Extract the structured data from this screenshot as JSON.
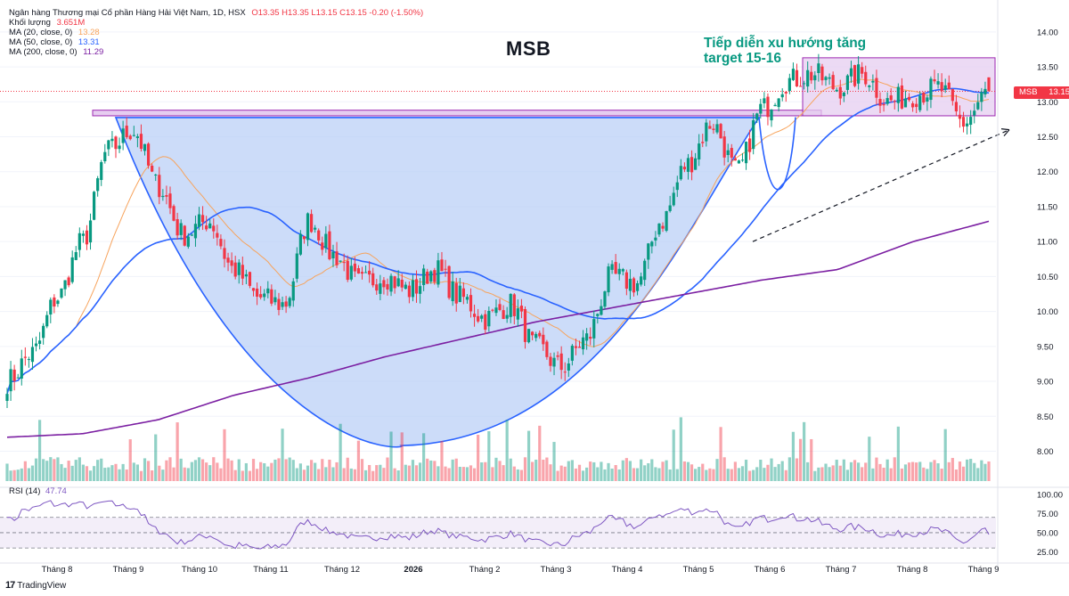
{
  "header": {
    "instrument": "Ngân hàng Thương mại Cổ phần Hàng Hải Việt Nam, 1D, HSX",
    "ohlc": "O13.35  H13.35  L13.15  C13.15  -0.20 (-1.50%)",
    "volume_label": "Khối lượng",
    "volume_value": "3.651M",
    "ma20_label": "MA (20, close, 0)",
    "ma20_value": "13.28",
    "ma50_label": "MA (50, close, 0)",
    "ma50_value": "13.31",
    "ma200_label": "MA (200, close, 0)",
    "ma200_value": "11.29"
  },
  "title": "MSB",
  "annotation_line1": "Tiếp diễn xu hướng tăng",
  "annotation_line2": "target 15-16",
  "price_badge": {
    "symbol": "MSB",
    "value": "13.15"
  },
  "rsi_legend": {
    "label": "RSI (14)",
    "value": "47.74"
  },
  "footer": {
    "logo_mark": "17",
    "logo_text": "TradingView"
  },
  "colors": {
    "up": "#089981",
    "down": "#f23645",
    "ma20": "#f7a35c",
    "ma50": "#2962ff",
    "ma200": "#7b1fa2",
    "cup_fill": "#bbd0f7",
    "box_fill": "#e6cdf0",
    "rsi": "#7e57c2",
    "rsi_band": "#f3eef9"
  },
  "chart_data": {
    "type": "candlestick",
    "title": "MSB",
    "price_axis": {
      "min": 7.7,
      "max": 14.1,
      "ticks": [
        "14.00",
        "13.50",
        "13.00",
        "12.50",
        "12.00",
        "11.50",
        "11.00",
        "10.50",
        "10.00",
        "9.50",
        "9.00",
        "8.50",
        "8.00"
      ]
    },
    "rsi_axis": {
      "min": 15,
      "max": 100,
      "ticks": [
        "100.00",
        "75.00",
        "50.00",
        "25.00"
      ]
    },
    "x_labels": [
      "Tháng 8",
      "Tháng 9",
      "Tháng 10",
      "Tháng 11",
      "Tháng 12",
      "2026",
      "Tháng 2",
      "Tháng 3",
      "Tháng 4",
      "Tháng 5",
      "Tháng 6",
      "Tháng 7",
      "Tháng 8",
      "Tháng 9"
    ],
    "close_anchors": [
      9.0,
      9.4,
      10.2,
      11.0,
      12.3,
      12.6,
      11.8,
      11.1,
      11.3,
      10.6,
      10.2,
      10.1,
      11.3,
      10.8,
      10.4,
      10.5,
      10.3,
      10.6,
      10.2,
      9.9,
      10.1,
      9.5,
      9.2,
      9.6,
      10.5,
      10.4,
      11.3,
      12.1,
      12.7,
      12.0,
      12.9,
      13.3,
      13.4,
      13.2,
      13.4,
      13.0,
      13.1,
      13.2,
      12.7,
      13.15
    ],
    "ma200_anchors": [
      8.2,
      8.25,
      8.45,
      8.8,
      9.05,
      9.35,
      9.6,
      9.85,
      10.05,
      10.25,
      10.45,
      10.6,
      11.0,
      11.29
    ],
    "last": {
      "open": 13.35,
      "high": 13.35,
      "low": 13.15,
      "close": 13.15
    },
    "last_price": 13.15,
    "resistance_zone": {
      "low": 12.8,
      "high": 12.88
    },
    "consolidation_box": {
      "low": 12.8,
      "high": 13.63
    },
    "trend_line": {
      "from": 11.0,
      "to": 12.6
    },
    "cup_bottom": 8.08,
    "rsi_levels": [
      70,
      50,
      30
    ],
    "rsi_last": 47.74
  }
}
